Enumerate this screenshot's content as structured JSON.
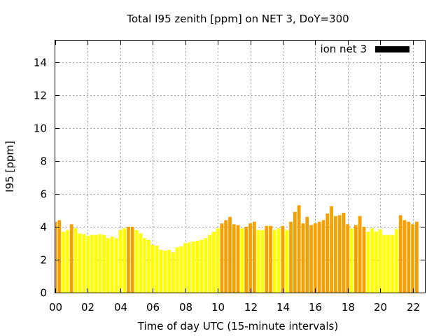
{
  "chart_data": {
    "type": "bar",
    "title": "Total I95 zenith [ppm] on NET 3, DoY=300",
    "xlabel": "Time of day UTC (15-minute intervals)",
    "ylabel": "I95 [ppm]",
    "xlim": [
      0,
      22.75
    ],
    "ylim": [
      0,
      15.3
    ],
    "interval_hours": 0.25,
    "grid": true,
    "legend": {
      "label": "ion net 3",
      "placement": "top-right",
      "color": "#000000"
    },
    "x_ticks": [
      {
        "value": 0,
        "label": "00"
      },
      {
        "value": 2,
        "label": "02"
      },
      {
        "value": 4,
        "label": "04"
      },
      {
        "value": 6,
        "label": "06"
      },
      {
        "value": 8,
        "label": "08"
      },
      {
        "value": 10,
        "label": "10"
      },
      {
        "value": 12,
        "label": "12"
      },
      {
        "value": 14,
        "label": "14"
      },
      {
        "value": 16,
        "label": "16"
      },
      {
        "value": 18,
        "label": "18"
      },
      {
        "value": 20,
        "label": "20"
      },
      {
        "value": 22,
        "label": "22"
      }
    ],
    "y_ticks": [
      {
        "value": 0,
        "label": "0"
      },
      {
        "value": 2,
        "label": "2"
      },
      {
        "value": 4,
        "label": "4"
      },
      {
        "value": 6,
        "label": "6"
      },
      {
        "value": 8,
        "label": "8"
      },
      {
        "value": 10,
        "label": "10"
      },
      {
        "value": 12,
        "label": "12"
      },
      {
        "value": 14,
        "label": "14"
      }
    ],
    "colors": {
      "low": "#ffff00",
      "high": "#f5a000"
    },
    "values": [
      4.3,
      4.4,
      3.7,
      3.8,
      4.15,
      3.9,
      3.6,
      3.55,
      3.45,
      3.5,
      3.5,
      3.55,
      3.5,
      3.3,
      3.4,
      3.3,
      3.8,
      3.9,
      4.0,
      4.0,
      3.8,
      3.6,
      3.3,
      3.2,
      2.9,
      2.85,
      2.6,
      2.55,
      2.6,
      2.45,
      2.75,
      2.8,
      3.0,
      3.05,
      3.1,
      3.15,
      3.2,
      3.3,
      3.5,
      3.7,
      3.9,
      4.2,
      4.4,
      4.6,
      4.15,
      4.1,
      3.9,
      4.0,
      4.2,
      4.3,
      3.8,
      3.8,
      4.05,
      4.05,
      3.8,
      3.9,
      4.05,
      3.8,
      4.3,
      4.9,
      5.3,
      4.2,
      4.6,
      4.1,
      4.2,
      4.3,
      4.4,
      4.8,
      5.25,
      4.65,
      4.7,
      4.85,
      4.15,
      3.9,
      4.1,
      4.65,
      4.0,
      3.7,
      3.9,
      3.7,
      3.85,
      3.5,
      3.5,
      3.5,
      3.85,
      4.7,
      4.4,
      4.3,
      4.15,
      4.3
    ],
    "levels": [
      "high",
      "high",
      "low",
      "low",
      "high",
      "low",
      "low",
      "low",
      "low",
      "low",
      "low",
      "low",
      "low",
      "low",
      "low",
      "low",
      "low",
      "low",
      "high",
      "high",
      "low",
      "low",
      "low",
      "low",
      "low",
      "low",
      "low",
      "low",
      "low",
      "low",
      "low",
      "low",
      "low",
      "low",
      "low",
      "low",
      "low",
      "low",
      "low",
      "low",
      "low",
      "high",
      "high",
      "high",
      "high",
      "high",
      "low",
      "high",
      "high",
      "high",
      "low",
      "low",
      "high",
      "high",
      "low",
      "low",
      "high",
      "low",
      "high",
      "high",
      "high",
      "high",
      "high",
      "high",
      "high",
      "high",
      "high",
      "high",
      "high",
      "high",
      "high",
      "high",
      "high",
      "low",
      "high",
      "high",
      "high",
      "low",
      "low",
      "low",
      "low",
      "low",
      "low",
      "low",
      "low",
      "high",
      "high",
      "high",
      "high",
      "high"
    ]
  }
}
